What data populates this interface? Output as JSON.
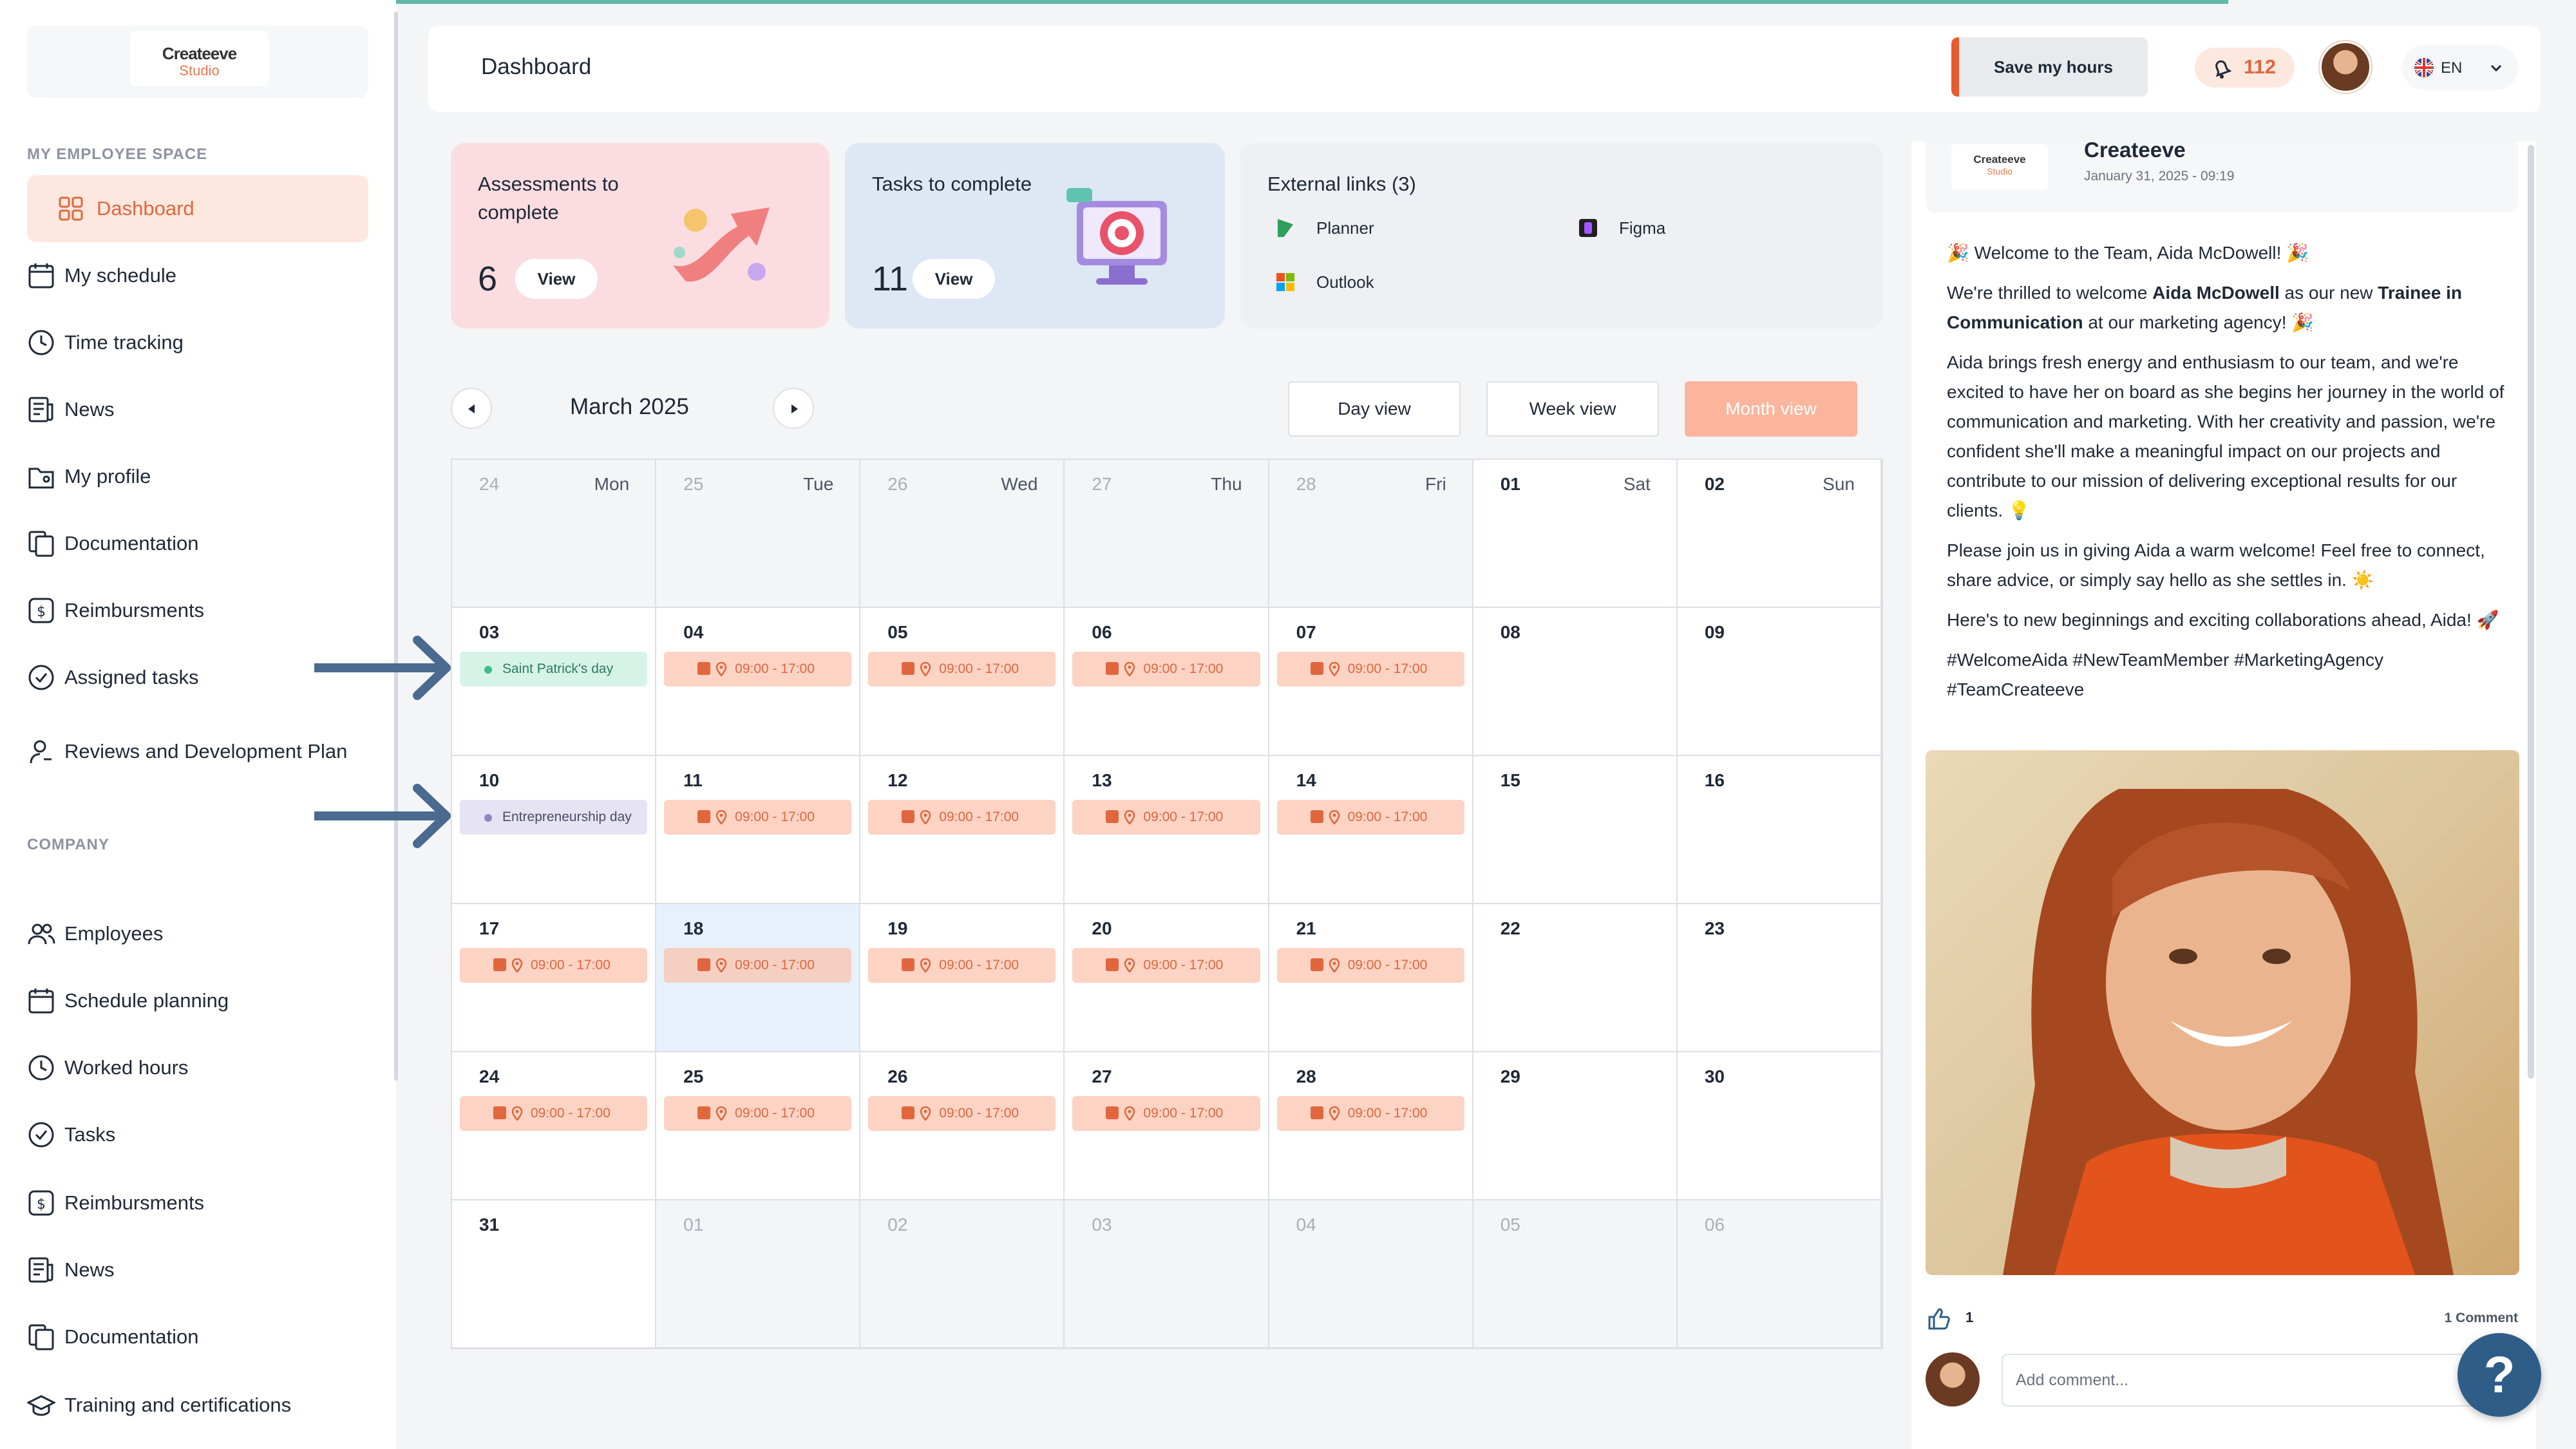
{
  "brand": {
    "logo_line1": "Createeve",
    "logo_line2": "Studio"
  },
  "sidebar": {
    "section_employee": "MY EMPLOYEE SPACE",
    "section_company": "COMPANY",
    "employee_items": [
      {
        "label": "Dashboard",
        "icon": "dashboard-icon",
        "active": true
      },
      {
        "label": "My schedule",
        "icon": "calendar-icon"
      },
      {
        "label": "Time tracking",
        "icon": "clock-icon"
      },
      {
        "label": "News",
        "icon": "news-icon"
      },
      {
        "label": "My profile",
        "icon": "profile-folder-icon"
      },
      {
        "label": "Documentation",
        "icon": "documents-icon"
      },
      {
        "label": "Reimbursments",
        "icon": "dollar-icon"
      },
      {
        "label": "Assigned tasks",
        "icon": "check-circle-icon"
      },
      {
        "label": "Reviews and Development Plan",
        "icon": "user-review-icon"
      }
    ],
    "company_items": [
      {
        "label": "Employees",
        "icon": "users-icon"
      },
      {
        "label": "Schedule planning",
        "icon": "calendar-icon"
      },
      {
        "label": "Worked hours",
        "icon": "clock-icon"
      },
      {
        "label": "Tasks",
        "icon": "check-circle-icon"
      },
      {
        "label": "Reimbursments",
        "icon": "dollar-icon"
      },
      {
        "label": "News",
        "icon": "news-icon"
      },
      {
        "label": "Documentation",
        "icon": "documents-icon"
      },
      {
        "label": "Training and certifications",
        "icon": "graduation-cap-icon"
      }
    ]
  },
  "header": {
    "title": "Dashboard",
    "save_label": "Save my hours",
    "notifications": "112",
    "language": "EN"
  },
  "cards": {
    "assessments": {
      "title": "Assessments to complete",
      "count": "6",
      "button": "View"
    },
    "tasks": {
      "title": "Tasks to complete",
      "count": "11",
      "button": "View"
    },
    "external": {
      "title": "External links (3)",
      "links": [
        {
          "label": "Planner",
          "icon": "planner-icon"
        },
        {
          "label": "Figma",
          "icon": "figma-icon"
        },
        {
          "label": "Outlook",
          "icon": "outlook-icon"
        }
      ]
    }
  },
  "calendar": {
    "month": "March 2025",
    "views": [
      "Day view",
      "Week view",
      "Month view"
    ],
    "active_view": "Month view",
    "weekdays": [
      "Mon",
      "Tue",
      "Wed",
      "Thu",
      "Fri",
      "Sat",
      "Sun"
    ],
    "weeks": [
      [
        {
          "d": "24",
          "o": true
        },
        {
          "d": "25",
          "o": true
        },
        {
          "d": "26",
          "o": true
        },
        {
          "d": "27",
          "o": true
        },
        {
          "d": "28",
          "o": true
        },
        {
          "d": "01"
        },
        {
          "d": "02"
        }
      ],
      [
        {
          "d": "03",
          "event": "Saint Patrick's day",
          "etype": "green"
        },
        {
          "d": "04",
          "shift": "09:00 - 17:00"
        },
        {
          "d": "05",
          "shift": "09:00 - 17:00"
        },
        {
          "d": "06",
          "shift": "09:00 - 17:00"
        },
        {
          "d": "07",
          "shift": "09:00 - 17:00"
        },
        {
          "d": "08"
        },
        {
          "d": "09"
        }
      ],
      [
        {
          "d": "10",
          "event": "Entrepreneurship day",
          "etype": "purple"
        },
        {
          "d": "11",
          "shift": "09:00 - 17:00"
        },
        {
          "d": "12",
          "shift": "09:00 - 17:00"
        },
        {
          "d": "13",
          "shift": "09:00 - 17:00"
        },
        {
          "d": "14",
          "shift": "09:00 - 17:00"
        },
        {
          "d": "15"
        },
        {
          "d": "16"
        }
      ],
      [
        {
          "d": "17",
          "shift": "09:00 - 17:00"
        },
        {
          "d": "18",
          "shift": "09:00 - 17:00",
          "today": true
        },
        {
          "d": "19",
          "shift": "09:00 - 17:00"
        },
        {
          "d": "20",
          "shift": "09:00 - 17:00"
        },
        {
          "d": "21",
          "shift": "09:00 - 17:00"
        },
        {
          "d": "22"
        },
        {
          "d": "23"
        }
      ],
      [
        {
          "d": "24",
          "shift": "09:00 - 17:00"
        },
        {
          "d": "25",
          "shift": "09:00 - 17:00"
        },
        {
          "d": "26",
          "shift": "09:00 - 17:00"
        },
        {
          "d": "27",
          "shift": "09:00 - 17:00"
        },
        {
          "d": "28",
          "shift": "09:00 - 17:00"
        },
        {
          "d": "29"
        },
        {
          "d": "30"
        }
      ],
      [
        {
          "d": "31"
        },
        {
          "d": "01",
          "o": true
        },
        {
          "d": "02",
          "o": true
        },
        {
          "d": "03",
          "o": true
        },
        {
          "d": "04",
          "o": true
        },
        {
          "d": "05",
          "o": true
        },
        {
          "d": "06",
          "o": true
        }
      ]
    ]
  },
  "feed": {
    "author": "Createeve",
    "date": "January 31, 2025 - 09:19",
    "line1": "🎉 Welcome to the Team, Aida McDowell! 🎉",
    "p2_a": "We're thrilled to welcome ",
    "p2_name": "Aida McDowell",
    "p2_b": " as our new ",
    "p2_role": "Trainee in Communication",
    "p2_c": " at our marketing agency! 🎉",
    "p3": "Aida brings fresh energy and enthusiasm to our team, and we're excited to have her on board as she begins her journey in the world of communication and marketing. With her creativity and passion, we're confident she'll make a meaningful impact on our projects and contribute to our mission of delivering exceptional results for our clients. 💡",
    "p4": "Please join us in giving Aida a warm welcome! Feel free to connect, share advice, or simply say hello as she settles in. ☀️",
    "p5": "Here's to new beginnings and exciting collaborations ahead, Aida! 🚀",
    "p6": "#WelcomeAida #NewTeamMember #MarketingAgency #TeamCreateeve",
    "likes": "1",
    "comments": "1 Comment",
    "comment_placeholder": "Add comment..."
  },
  "help": "?",
  "colors": {
    "accent": "#e0673d",
    "accent_light": "#fde8df",
    "help_blue": "#2e5d87",
    "today": "#e6f1fb"
  }
}
